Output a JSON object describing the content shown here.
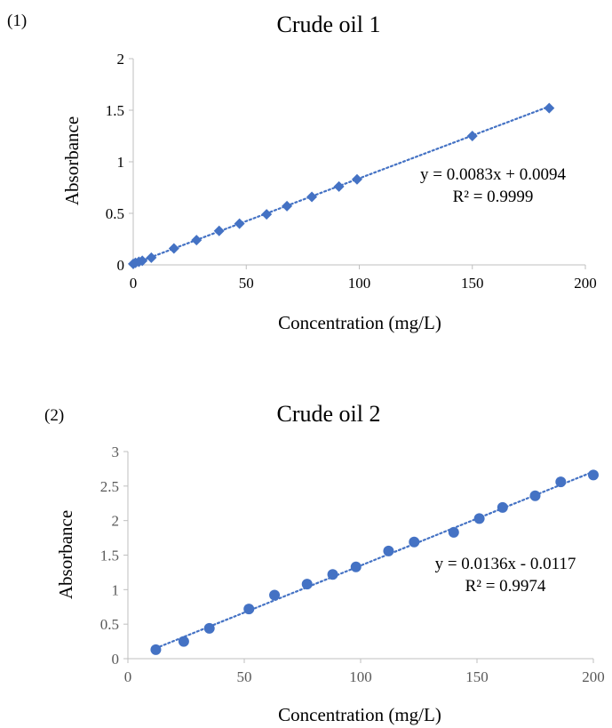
{
  "chart_data": [
    {
      "type": "scatter",
      "panel_label": "(1)",
      "title": "Crude oil 1",
      "xlabel": "Concentration (mg/L)",
      "ylabel": "Absorbance",
      "xlim": [
        0,
        200
      ],
      "ylim": [
        0,
        2
      ],
      "x_ticks": [
        "0",
        "50",
        "100",
        "150",
        "200"
      ],
      "y_ticks": [
        "0",
        "0.5",
        "1",
        "1.5",
        "2"
      ],
      "marker": "diamond",
      "color": "#4472C4",
      "grid": false,
      "series": [
        {
          "x": [
            0,
            1,
            2.5,
            4,
            8,
            18,
            28,
            38,
            47,
            59,
            68,
            79,
            91,
            99,
            150,
            184
          ],
          "y": [
            0.01,
            0.02,
            0.03,
            0.04,
            0.07,
            0.16,
            0.24,
            0.33,
            0.4,
            0.49,
            0.57,
            0.66,
            0.76,
            0.83,
            1.25,
            1.52
          ]
        }
      ],
      "trendline": {
        "slope": 0.0083,
        "intercept": 0.0094,
        "style": "dotted"
      },
      "equation": "y = 0.0083x + 0.0094",
      "r_squared": "R² = 0.9999"
    },
    {
      "type": "scatter",
      "panel_label": "(2)",
      "title": "Crude oil 2",
      "xlabel": "Concentration (mg/L)",
      "ylabel": "Absorbance",
      "xlim": [
        0,
        200
      ],
      "ylim": [
        0,
        3
      ],
      "x_ticks": [
        "0",
        "50",
        "100",
        "150",
        "200"
      ],
      "y_ticks": [
        "0",
        "0.5",
        "1",
        "1.5",
        "2",
        "2.5",
        "3"
      ],
      "marker": "circle",
      "color": "#4472C4",
      "grid": false,
      "series": [
        {
          "x": [
            12,
            24,
            35,
            52,
            63,
            77,
            88,
            98,
            112,
            123,
            140,
            151,
            161,
            175,
            186,
            200
          ],
          "y": [
            0.13,
            0.25,
            0.44,
            0.72,
            0.92,
            1.08,
            1.22,
            1.33,
            1.56,
            1.69,
            1.83,
            2.03,
            2.19,
            2.36,
            2.56,
            2.66
          ]
        }
      ],
      "trendline": {
        "slope": 0.0136,
        "intercept": -0.0117,
        "style": "dotted"
      },
      "equation": "y = 0.0136x - 0.0117",
      "r_squared": "R² = 0.9974"
    }
  ]
}
